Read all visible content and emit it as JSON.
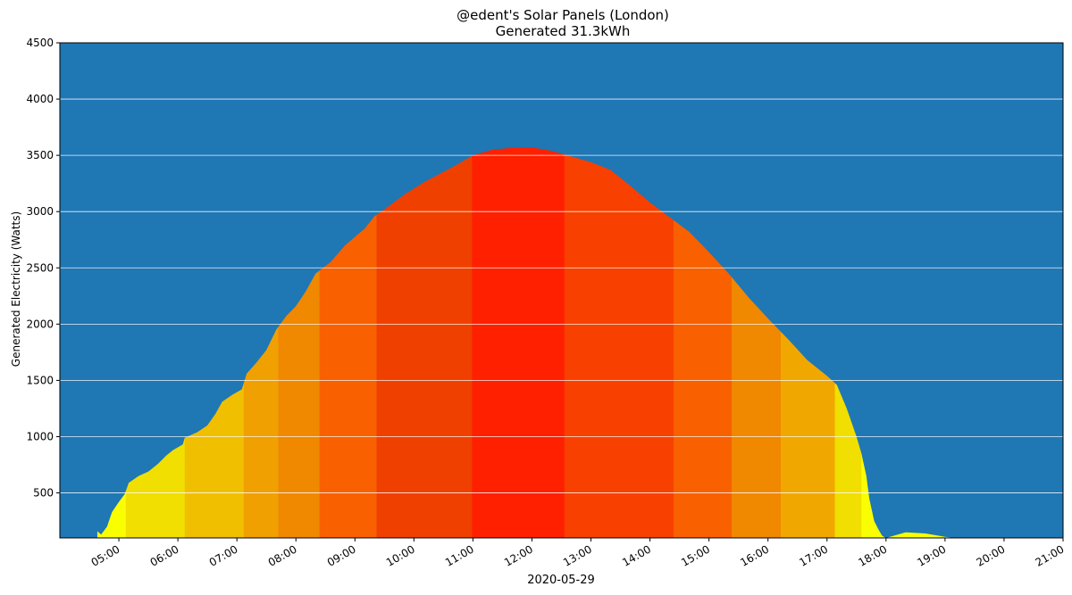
{
  "chart_data": {
    "type": "area",
    "title": "@edent's Solar Panels (London)",
    "subtitle": "Generated 31.3kWh",
    "xlabel": "2020-05-29",
    "ylabel": "Generated Electricity (Watts)",
    "x_tick_labels": [
      "05:00",
      "06:00",
      "07:00",
      "08:00",
      "09:00",
      "10:00",
      "11:00",
      "12:00",
      "13:00",
      "14:00",
      "15:00",
      "16:00",
      "17:00",
      "18:00",
      "19:00",
      "20:00",
      "21:00"
    ],
    "y_ticks": [
      500,
      1000,
      1500,
      2000,
      2500,
      3000,
      3500,
      4000,
      4500
    ],
    "ylim": [
      100,
      4500
    ],
    "xlim": [
      "04:00",
      "21:00"
    ],
    "grid": "horizontal",
    "background_color": "#1f77b4",
    "points": [
      [
        "04:38",
        160
      ],
      [
        "04:42",
        130
      ],
      [
        "04:48",
        200
      ],
      [
        "04:53",
        330
      ],
      [
        "05:00",
        420
      ],
      [
        "05:06",
        490
      ],
      [
        "05:10",
        590
      ],
      [
        "05:20",
        650
      ],
      [
        "05:30",
        690
      ],
      [
        "05:40",
        760
      ],
      [
        "05:48",
        830
      ],
      [
        "05:55",
        880
      ],
      [
        "06:05",
        930
      ],
      [
        "06:07",
        990
      ],
      [
        "06:20",
        1040
      ],
      [
        "06:30",
        1100
      ],
      [
        "06:38",
        1200
      ],
      [
        "06:45",
        1310
      ],
      [
        "06:55",
        1370
      ],
      [
        "07:05",
        1420
      ],
      [
        "07:10",
        1560
      ],
      [
        "07:20",
        1660
      ],
      [
        "07:30",
        1770
      ],
      [
        "07:40",
        1950
      ],
      [
        "07:50",
        2070
      ],
      [
        "08:00",
        2160
      ],
      [
        "08:10",
        2290
      ],
      [
        "08:20",
        2450
      ],
      [
        "08:35",
        2550
      ],
      [
        "08:50",
        2700
      ],
      [
        "09:10",
        2850
      ],
      [
        "09:20",
        2960
      ],
      [
        "09:30",
        3020
      ],
      [
        "09:50",
        3150
      ],
      [
        "10:10",
        3260
      ],
      [
        "10:40",
        3400
      ],
      [
        "11:00",
        3500
      ],
      [
        "11:20",
        3550
      ],
      [
        "11:45",
        3570
      ],
      [
        "12:00",
        3570
      ],
      [
        "12:20",
        3540
      ],
      [
        "12:40",
        3490
      ],
      [
        "13:00",
        3440
      ],
      [
        "13:20",
        3370
      ],
      [
        "13:40",
        3230
      ],
      [
        "14:00",
        3080
      ],
      [
        "14:20",
        2950
      ],
      [
        "14:40",
        2820
      ],
      [
        "15:00",
        2640
      ],
      [
        "15:20",
        2450
      ],
      [
        "15:40",
        2240
      ],
      [
        "16:00",
        2050
      ],
      [
        "16:20",
        1870
      ],
      [
        "16:40",
        1680
      ],
      [
        "17:00",
        1540
      ],
      [
        "17:10",
        1460
      ],
      [
        "17:20",
        1250
      ],
      [
        "17:30",
        1000
      ],
      [
        "17:35",
        850
      ],
      [
        "17:40",
        650
      ],
      [
        "17:43",
        450
      ],
      [
        "17:48",
        250
      ],
      [
        "17:52",
        180
      ],
      [
        "17:56",
        120
      ],
      [
        "18:00",
        100
      ],
      [
        "18:20",
        150
      ],
      [
        "18:40",
        140
      ],
      [
        "19:00",
        110
      ],
      [
        "19:10",
        100
      ]
    ],
    "color_bands": [
      {
        "from": "04:38",
        "to": "05:07",
        "color": "#f9ff00"
      },
      {
        "from": "05:07",
        "to": "06:07",
        "color": "#f0df00"
      },
      {
        "from": "06:07",
        "to": "07:07",
        "color": "#f0bf00"
      },
      {
        "from": "07:07",
        "to": "07:42",
        "color": "#f0a000"
      },
      {
        "from": "07:42",
        "to": "08:24",
        "color": "#f08800"
      },
      {
        "from": "08:24",
        "to": "09:22",
        "color": "#f86000"
      },
      {
        "from": "09:22",
        "to": "10:59",
        "color": "#f04000"
      },
      {
        "from": "10:59",
        "to": "12:33",
        "color": "#ff2000"
      },
      {
        "from": "12:33",
        "to": "14:24",
        "color": "#f84000"
      },
      {
        "from": "14:24",
        "to": "15:23",
        "color": "#f86000"
      },
      {
        "from": "15:23",
        "to": "16:13",
        "color": "#f08800"
      },
      {
        "from": "16:13",
        "to": "17:08",
        "color": "#f0a800"
      },
      {
        "from": "17:08",
        "to": "17:35",
        "color": "#f0df00"
      },
      {
        "from": "17:35",
        "to": "19:10",
        "color": "#f9ff00"
      }
    ]
  }
}
